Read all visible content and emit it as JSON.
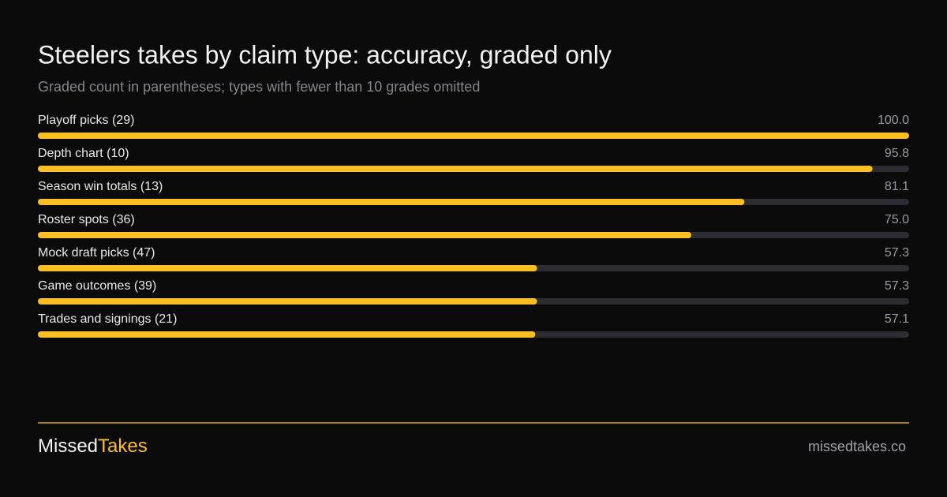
{
  "chart_data": {
    "type": "hbar",
    "title": "Steelers takes by claim type: accuracy, graded only",
    "subtitle": "Graded count in parentheses; types with fewer than 10 grades omitted",
    "categories": [
      "Playoff picks (29)",
      "Depth chart (10)",
      "Season win totals (13)",
      "Roster spots (36)",
      "Mock draft picks (47)",
      "Game outcomes (39)",
      "Trades and signings (21)"
    ],
    "values": [
      100.0,
      95.8,
      81.1,
      75.0,
      57.3,
      57.3,
      57.1
    ],
    "value_labels": [
      "100.0",
      "95.8",
      "81.1",
      "75.0",
      "57.3",
      "57.3",
      "57.1"
    ],
    "color": "#fbbf24",
    "track_color": "#2d2c32",
    "xlim": [
      0,
      100
    ]
  },
  "footer": {
    "brand_first": "Missed",
    "brand_second": "Takes",
    "url": "missedtakes.co"
  }
}
